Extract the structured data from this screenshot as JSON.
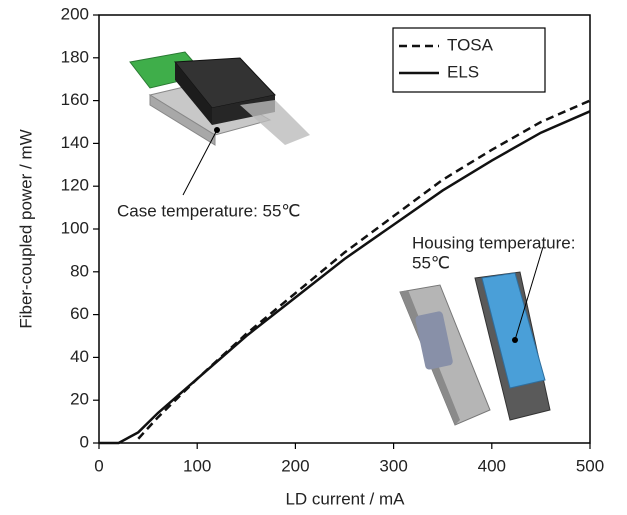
{
  "chart_data": {
    "type": "line",
    "x_label": "LD current / mA",
    "y_label": "Fiber-coupled power / mW",
    "x": [
      0,
      20,
      40,
      60,
      80,
      100,
      150,
      200,
      250,
      300,
      350,
      400,
      450,
      500
    ],
    "series": [
      {
        "name": "TOSA",
        "color": "#111111",
        "dash": "dashed",
        "values": [
          null,
          null,
          2,
          12,
          21,
          30,
          51,
          70,
          89,
          106,
          123,
          137,
          150,
          160
        ]
      },
      {
        "name": "ELS",
        "color": "#111111",
        "dash": "solid",
        "values": [
          0,
          0,
          5,
          14,
          22,
          30,
          50,
          68,
          86,
          102,
          118,
          132,
          145,
          155
        ]
      }
    ],
    "xlim": [
      0,
      500
    ],
    "xticks": [
      0,
      100,
      200,
      300,
      400,
      500
    ],
    "ylim": [
      0,
      200
    ],
    "yticks": [
      0,
      20,
      40,
      60,
      80,
      100,
      120,
      140,
      160,
      180,
      200
    ],
    "legend": "upper right",
    "annotations": [
      "Case temperature: 55℃",
      "Housing temperature:",
      "55℃"
    ]
  }
}
